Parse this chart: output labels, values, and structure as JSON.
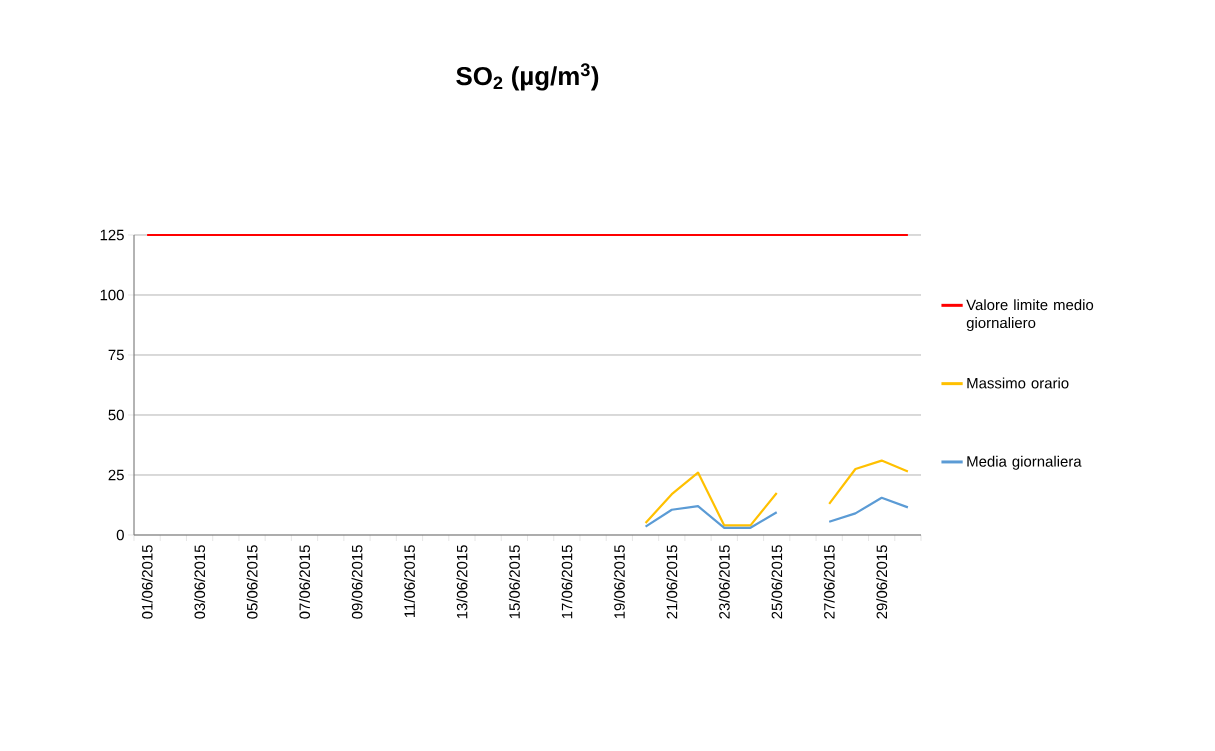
{
  "chart_data": {
    "type": "line",
    "title": "SO$_{2}$  (µg/m$^{3}$)",
    "categories": [
      "01/06/2015",
      null,
      "03/06/2015",
      null,
      "05/06/2015",
      null,
      "07/06/2015",
      null,
      "09/06/2015",
      null,
      "11/06/2015",
      null,
      "13/06/2015",
      null,
      "15/06/2015",
      null,
      "17/06/2015",
      null,
      "19/06/2015",
      null,
      "21/06/2015",
      null,
      "23/06/2015",
      null,
      "25/06/2015",
      null,
      "27/06/2015",
      null,
      "29/06/2015",
      null
    ],
    "series": [
      {
        "name": "Valore limite medio giornaliero",
        "color": "#ff0000",
        "values": [
          125,
          125,
          125,
          125,
          125,
          125,
          125,
          125,
          125,
          125,
          125,
          125,
          125,
          125,
          125,
          125,
          125,
          125,
          125,
          125,
          125,
          125,
          125,
          125,
          125,
          125,
          125,
          125,
          125,
          125
        ]
      },
      {
        "name": "Massimo orario",
        "color": "#ffc000",
        "values": [
          null,
          null,
          null,
          null,
          null,
          null,
          null,
          null,
          null,
          null,
          null,
          null,
          null,
          null,
          null,
          null,
          null,
          null,
          null,
          5,
          17,
          26,
          4,
          4,
          17.5,
          null,
          13,
          27.5,
          31,
          26.5
        ]
      },
      {
        "name": "Media giornaliera",
        "color": "#5b9bd5",
        "values": [
          null,
          null,
          null,
          null,
          null,
          null,
          null,
          null,
          null,
          null,
          null,
          null,
          null,
          null,
          null,
          null,
          null,
          null,
          null,
          3.5,
          10.5,
          12,
          3,
          3,
          9.5,
          null,
          5.5,
          9,
          15.5,
          11.5
        ]
      }
    ],
    "ylim": [
      0,
      125
    ],
    "yticks": [
      0,
      25,
      50,
      75,
      100,
      125
    ],
    "grid": "y",
    "legend": "right",
    "line_style": "solid",
    "marker": "none"
  }
}
